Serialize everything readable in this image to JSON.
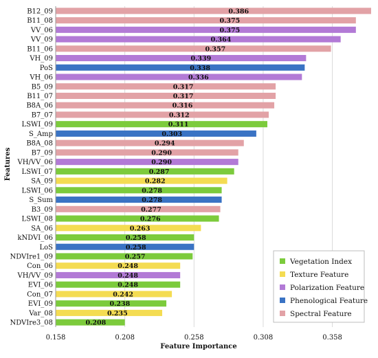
{
  "chart_data": {
    "type": "bar",
    "orientation": "horizontal",
    "xlabel": "Feature Importance",
    "ylabel": "Features",
    "xlim": [
      0.158,
      0.388
    ],
    "xticks": [
      0.158,
      0.208,
      0.258,
      0.308,
      0.358
    ],
    "grid": "vertical",
    "legend_position": "bottom-right",
    "colors": {
      "vegetation": "#7ccb3c",
      "texture": "#f4dc52",
      "polarization": "#b27ad6",
      "phenological": "#3a73c4",
      "spectral": "#e2a2a6"
    },
    "legend": [
      {
        "key": "vegetation",
        "label": "Vegetation Index"
      },
      {
        "key": "texture",
        "label": "Texture Feature"
      },
      {
        "key": "polarization",
        "label": "Polarization Feature"
      },
      {
        "key": "phenological",
        "label": "Phenological Feature"
      },
      {
        "key": "spectral",
        "label": "Spectral Feature"
      }
    ],
    "bars": [
      {
        "label": "B12_09",
        "value": 0.386,
        "display": "0.386",
        "group": "spectral"
      },
      {
        "label": "B11_08",
        "value": 0.375,
        "display": "0.375",
        "group": "spectral"
      },
      {
        "label": "VV_06",
        "value": 0.375,
        "display": "0.375",
        "group": "polarization"
      },
      {
        "label": "VV_09",
        "value": 0.364,
        "display": "0.364",
        "group": "polarization"
      },
      {
        "label": "B11_06",
        "value": 0.357,
        "display": "0.357",
        "group": "spectral"
      },
      {
        "label": "VH_09",
        "value": 0.339,
        "display": "0.339",
        "group": "polarization"
      },
      {
        "label": "PoS",
        "value": 0.338,
        "display": "0.338",
        "group": "phenological"
      },
      {
        "label": "VH_06",
        "value": 0.336,
        "display": "0.336",
        "group": "polarization"
      },
      {
        "label": "B5_09",
        "value": 0.317,
        "display": "0.317",
        "group": "spectral"
      },
      {
        "label": "B11_07",
        "value": 0.317,
        "display": "0.317",
        "group": "spectral"
      },
      {
        "label": "B8A_06",
        "value": 0.316,
        "display": "0.316",
        "group": "spectral"
      },
      {
        "label": "B7_07",
        "value": 0.312,
        "display": "0.312",
        "group": "spectral"
      },
      {
        "label": "LSWI_09",
        "value": 0.311,
        "display": "0.311",
        "group": "vegetation"
      },
      {
        "label": "S_Amp",
        "value": 0.303,
        "display": "0.303",
        "group": "phenological"
      },
      {
        "label": "B8A_08",
        "value": 0.294,
        "display": "0.294",
        "group": "spectral"
      },
      {
        "label": "B7_09",
        "value": 0.29,
        "display": "0.290",
        "group": "spectral"
      },
      {
        "label": "VH/VV_06",
        "value": 0.29,
        "display": "0.290",
        "group": "polarization"
      },
      {
        "label": "LSWI_07",
        "value": 0.287,
        "display": "0.287",
        "group": "vegetation"
      },
      {
        "label": "SA_09",
        "value": 0.282,
        "display": "0.282",
        "group": "texture"
      },
      {
        "label": "LSWI_06",
        "value": 0.278,
        "display": "0.278",
        "group": "vegetation"
      },
      {
        "label": "S_Sum",
        "value": 0.278,
        "display": "0.278",
        "group": "phenological"
      },
      {
        "label": "B3_09",
        "value": 0.277,
        "display": "0.277",
        "group": "spectral"
      },
      {
        "label": "LSWI_08",
        "value": 0.276,
        "display": "0.276",
        "group": "vegetation"
      },
      {
        "label": "SA_06",
        "value": 0.263,
        "display": "0.263",
        "group": "texture"
      },
      {
        "label": "kNDVI_06",
        "value": 0.258,
        "display": "0.258",
        "group": "vegetation"
      },
      {
        "label": "LoS",
        "value": 0.258,
        "display": "0.258",
        "group": "phenological"
      },
      {
        "label": "NDVIre1_09",
        "value": 0.257,
        "display": "0.257",
        "group": "vegetation"
      },
      {
        "label": "Con_06",
        "value": 0.248,
        "display": "0.248",
        "group": "texture"
      },
      {
        "label": "VH/VV_09",
        "value": 0.248,
        "display": "0.248",
        "group": "polarization"
      },
      {
        "label": "EVI_06",
        "value": 0.248,
        "display": "0.248",
        "group": "vegetation"
      },
      {
        "label": "Con_07",
        "value": 0.242,
        "display": "0.242",
        "group": "texture"
      },
      {
        "label": "EVI_09",
        "value": 0.238,
        "display": "0.238",
        "group": "vegetation"
      },
      {
        "label": "Var_08",
        "value": 0.235,
        "display": "0.235",
        "group": "texture"
      },
      {
        "label": "NDVIre3_08",
        "value": 0.208,
        "display": "0.208",
        "group": "vegetation"
      }
    ]
  }
}
